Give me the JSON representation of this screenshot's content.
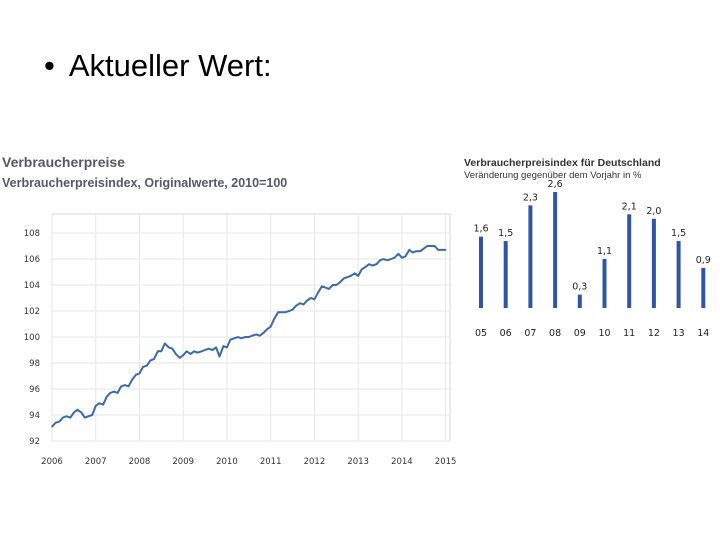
{
  "slide": {
    "bullet": "•",
    "title": "Aktueller Wert:"
  },
  "chart_data": [
    {
      "type": "line",
      "title": "Verbraucherpreise",
      "subtitle": "Verbraucherpreisindex, Originalwerte, 2010=100",
      "xlabel": "",
      "ylabel": "",
      "xlim": [
        2006,
        2015.1
      ],
      "ylim": [
        92,
        109
      ],
      "grid": true,
      "color": "#3b6aa8",
      "x_ticks": [
        "2006",
        "2007",
        "2008",
        "2009",
        "2010",
        "2011",
        "2012",
        "2013",
        "2014",
        "2015"
      ],
      "y_ticks": [
        "92",
        "94",
        "96",
        "98",
        "100",
        "102",
        "104",
        "106",
        "108"
      ],
      "series": [
        {
          "name": "Verbraucherpreisindex",
          "x": [
            2006.0,
            2006.08,
            2006.17,
            2006.25,
            2006.33,
            2006.42,
            2006.5,
            2006.58,
            2006.67,
            2006.75,
            2006.83,
            2006.92,
            2007.0,
            2007.08,
            2007.17,
            2007.25,
            2007.33,
            2007.42,
            2007.5,
            2007.58,
            2007.67,
            2007.75,
            2007.83,
            2007.92,
            2008.0,
            2008.08,
            2008.17,
            2008.25,
            2008.33,
            2008.42,
            2008.5,
            2008.58,
            2008.67,
            2008.75,
            2008.83,
            2008.92,
            2009.0,
            2009.08,
            2009.17,
            2009.25,
            2009.33,
            2009.42,
            2009.5,
            2009.58,
            2009.67,
            2009.75,
            2009.83,
            2009.92,
            2010.0,
            2010.08,
            2010.17,
            2010.25,
            2010.33,
            2010.42,
            2010.5,
            2010.58,
            2010.67,
            2010.75,
            2010.83,
            2010.92,
            2011.0,
            2011.08,
            2011.17,
            2011.25,
            2011.33,
            2011.42,
            2011.5,
            2011.58,
            2011.67,
            2011.75,
            2011.83,
            2011.92,
            2012.0,
            2012.08,
            2012.17,
            2012.25,
            2012.33,
            2012.42,
            2012.5,
            2012.58,
            2012.67,
            2012.75,
            2012.83,
            2012.92,
            2013.0,
            2013.08,
            2013.17,
            2013.25,
            2013.33,
            2013.42,
            2013.5,
            2013.58,
            2013.67,
            2013.75,
            2013.83,
            2013.92,
            2014.0,
            2014.08,
            2014.17,
            2014.25,
            2014.33,
            2014.42,
            2014.5,
            2014.58,
            2014.67,
            2014.75,
            2014.83,
            2014.92,
            2015.0
          ],
          "values": [
            93.1,
            93.4,
            93.5,
            93.8,
            93.9,
            93.8,
            94.2,
            94.4,
            94.2,
            93.8,
            93.9,
            94.0,
            94.7,
            94.9,
            94.8,
            95.4,
            95.7,
            95.8,
            95.7,
            96.2,
            96.3,
            96.2,
            96.7,
            97.1,
            97.2,
            97.7,
            97.8,
            98.2,
            98.3,
            98.9,
            98.9,
            99.5,
            99.2,
            99.1,
            98.7,
            98.4,
            98.6,
            98.9,
            98.7,
            98.9,
            98.8,
            98.9,
            99.0,
            99.1,
            99.0,
            99.2,
            98.5,
            99.3,
            99.2,
            99.8,
            99.9,
            100.0,
            99.9,
            100.0,
            100.0,
            100.1,
            100.2,
            100.1,
            100.3,
            100.6,
            100.8,
            101.4,
            101.9,
            101.9,
            101.9,
            102.0,
            102.1,
            102.4,
            102.6,
            102.5,
            102.8,
            103.0,
            102.9,
            103.4,
            103.9,
            103.8,
            103.7,
            104.0,
            104.0,
            104.2,
            104.5,
            104.6,
            104.7,
            104.9,
            104.7,
            105.2,
            105.4,
            105.6,
            105.5,
            105.6,
            105.9,
            106.0,
            105.9,
            106.0,
            106.1,
            106.4,
            106.1,
            106.2,
            106.7,
            106.5,
            106.6,
            106.6,
            106.8,
            107.0,
            107.0,
            107.0,
            106.7,
            106.7,
            106.7
          ]
        }
      ]
    },
    {
      "type": "bar",
      "title": "Verbraucherpreisindex für Deutschland",
      "subtitle": "Veränderung gegenüber dem Vorjahr in %",
      "categories": [
        "05",
        "06",
        "07",
        "08",
        "09",
        "10",
        "11",
        "12",
        "13",
        "14"
      ],
      "values": [
        1.6,
        1.5,
        2.3,
        2.6,
        0.3,
        1.1,
        2.1,
        2.0,
        1.5,
        0.9
      ],
      "data_labels": [
        "1,6",
        "1,5",
        "2,3",
        "2,6",
        "0,3",
        "1,1",
        "2,1",
        "2,0",
        "1,5",
        "0,9"
      ],
      "ylim": [
        0,
        2.6
      ],
      "color": "#2f55a4",
      "grid": false
    }
  ]
}
